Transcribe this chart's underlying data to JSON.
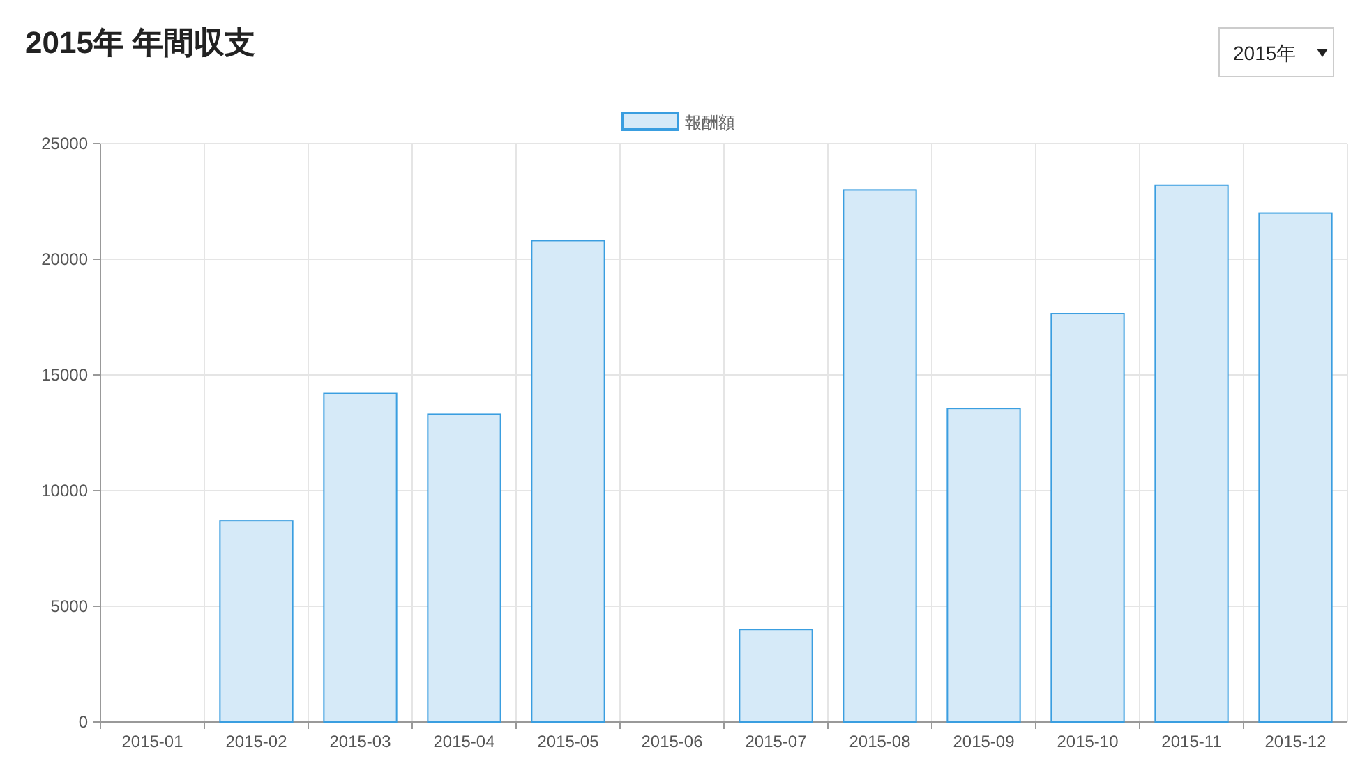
{
  "chart_data": {
    "type": "bar",
    "title": "2015年 年間収支",
    "annotations": [
      "2015年"
    ],
    "categories": [
      "2015-01",
      "2015-02",
      "2015-03",
      "2015-04",
      "2015-05",
      "2015-06",
      "2015-07",
      "2015-08",
      "2015-09",
      "2015-10",
      "2015-11",
      "2015-12"
    ],
    "series": [
      {
        "name": "報酬額",
        "color": "#d6eaf8",
        "values": [
          0,
          8700,
          14200,
          13300,
          20800,
          0,
          4000,
          23000,
          13550,
          17650,
          23200,
          22000
        ]
      }
    ],
    "ylim": [
      0,
      25000
    ],
    "yticks": [
      0,
      5000,
      10000,
      15000,
      20000,
      25000
    ],
    "grid": true,
    "legend": "top"
  }
}
